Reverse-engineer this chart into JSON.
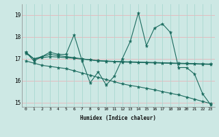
{
  "title": "",
  "xlabel": "Humidex (Indice chaleur)",
  "background_color": "#cde8e4",
  "line_color": "#1a6b5e",
  "grid_color_h": "#e8b4b8",
  "grid_color_v": "#a8d8d0",
  "xlim": [
    -0.5,
    23.5
  ],
  "ylim": [
    14.8,
    19.5
  ],
  "yticks": [
    15,
    16,
    17,
    18,
    19
  ],
  "xticks": [
    0,
    1,
    2,
    3,
    4,
    5,
    6,
    7,
    8,
    9,
    10,
    11,
    12,
    13,
    14,
    15,
    16,
    17,
    18,
    19,
    20,
    21,
    22,
    23
  ],
  "series1_x": [
    0,
    1,
    2,
    3,
    4,
    5,
    6,
    7,
    8,
    9,
    10,
    11,
    12,
    13,
    14,
    15,
    16,
    17,
    18,
    19,
    20,
    21,
    22,
    23
  ],
  "series1_y": [
    17.3,
    16.9,
    17.1,
    17.3,
    17.2,
    17.2,
    18.1,
    16.9,
    15.9,
    16.4,
    15.8,
    16.2,
    17.0,
    17.8,
    19.1,
    17.6,
    18.4,
    18.6,
    18.2,
    16.6,
    16.6,
    16.3,
    15.4,
    14.9
  ],
  "series2_x": [
    0,
    1,
    2,
    3,
    4,
    5,
    6,
    7,
    8,
    9,
    10,
    11,
    12,
    13,
    14,
    15,
    16,
    17,
    18,
    19,
    20,
    21,
    22,
    23
  ],
  "series2_y": [
    17.3,
    17.0,
    17.1,
    17.2,
    17.15,
    17.1,
    17.05,
    17.0,
    16.95,
    16.9,
    16.88,
    16.87,
    16.85,
    16.84,
    16.83,
    16.82,
    16.81,
    16.8,
    16.79,
    16.78,
    16.77,
    16.76,
    16.75,
    16.74
  ],
  "series3_x": [
    0,
    1,
    2,
    3,
    4,
    5,
    6,
    7,
    8,
    9,
    10,
    11,
    12,
    13,
    14,
    15,
    16,
    17,
    18,
    19,
    20,
    21,
    22,
    23
  ],
  "series3_y": [
    16.9,
    16.8,
    16.7,
    16.65,
    16.6,
    16.55,
    16.45,
    16.35,
    16.25,
    16.15,
    16.05,
    15.95,
    15.85,
    15.78,
    15.72,
    15.65,
    15.58,
    15.5,
    15.42,
    15.35,
    15.25,
    15.15,
    15.05,
    14.95
  ],
  "series4_x": [
    0,
    1,
    2,
    3,
    4,
    5,
    6,
    7,
    8,
    9,
    10,
    11,
    12,
    13,
    14,
    15,
    16,
    17,
    18,
    19,
    20,
    21,
    22,
    23
  ],
  "series4_y": [
    17.25,
    17.0,
    17.05,
    17.1,
    17.08,
    17.05,
    17.02,
    16.98,
    16.95,
    16.92,
    16.9,
    16.88,
    16.87,
    16.86,
    16.85,
    16.84,
    16.83,
    16.82,
    16.81,
    16.8,
    16.79,
    16.78,
    16.77,
    16.76
  ]
}
